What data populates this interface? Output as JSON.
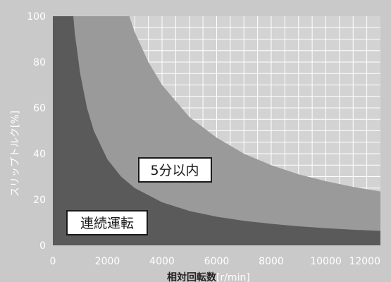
{
  "chart_data": {
    "type": "area",
    "xlabel_main": "相対回転数",
    "xlabel_unit": "[r/min]",
    "ylabel": "スリップトルク[%]",
    "xlim": [
      0,
      12000
    ],
    "ylim": [
      0,
      100
    ],
    "x_ticks": [
      "0",
      "2000",
      "4000",
      "6000",
      "8000",
      "10000",
      "12000"
    ],
    "y_ticks": [
      "0",
      "20",
      "40",
      "60",
      "80",
      "100"
    ],
    "grid": "white vertical and horizontal lines in the region above the outer curve",
    "series": [
      {
        "name": "5分以内",
        "x": [
          2800,
          3000,
          3500,
          4000,
          5000,
          6000,
          7000,
          8000,
          9000,
          10000,
          11000,
          12000
        ],
        "y": [
          100,
          93,
          80,
          70,
          56,
          47,
          40,
          35,
          31,
          28,
          25.5,
          23.5
        ]
      },
      {
        "name": "連続運転",
        "x": [
          750,
          800,
          1000,
          1250,
          1500,
          2000,
          2500,
          3000,
          4000,
          5000,
          6000,
          7000,
          8000,
          9000,
          10000,
          11000,
          12000
        ],
        "y": [
          100,
          93,
          75,
          60,
          50,
          37.5,
          30,
          25,
          18.8,
          15,
          12.5,
          10.7,
          9.4,
          8.3,
          7.5,
          6.8,
          6.3
        ]
      }
    ],
    "labels": {
      "zone_5min": "5分以内",
      "zone_continuous": "連続運転"
    },
    "colors": {
      "background": "#c9c9c9",
      "grid_region": "#d3d3d3",
      "grid_lines": "#ffffff",
      "zone_5min": "#9a9a9a",
      "zone_continuous": "#5a5a5a",
      "label_box_fill": "#ffffff",
      "label_box_border": "#1a1a1a"
    }
  }
}
